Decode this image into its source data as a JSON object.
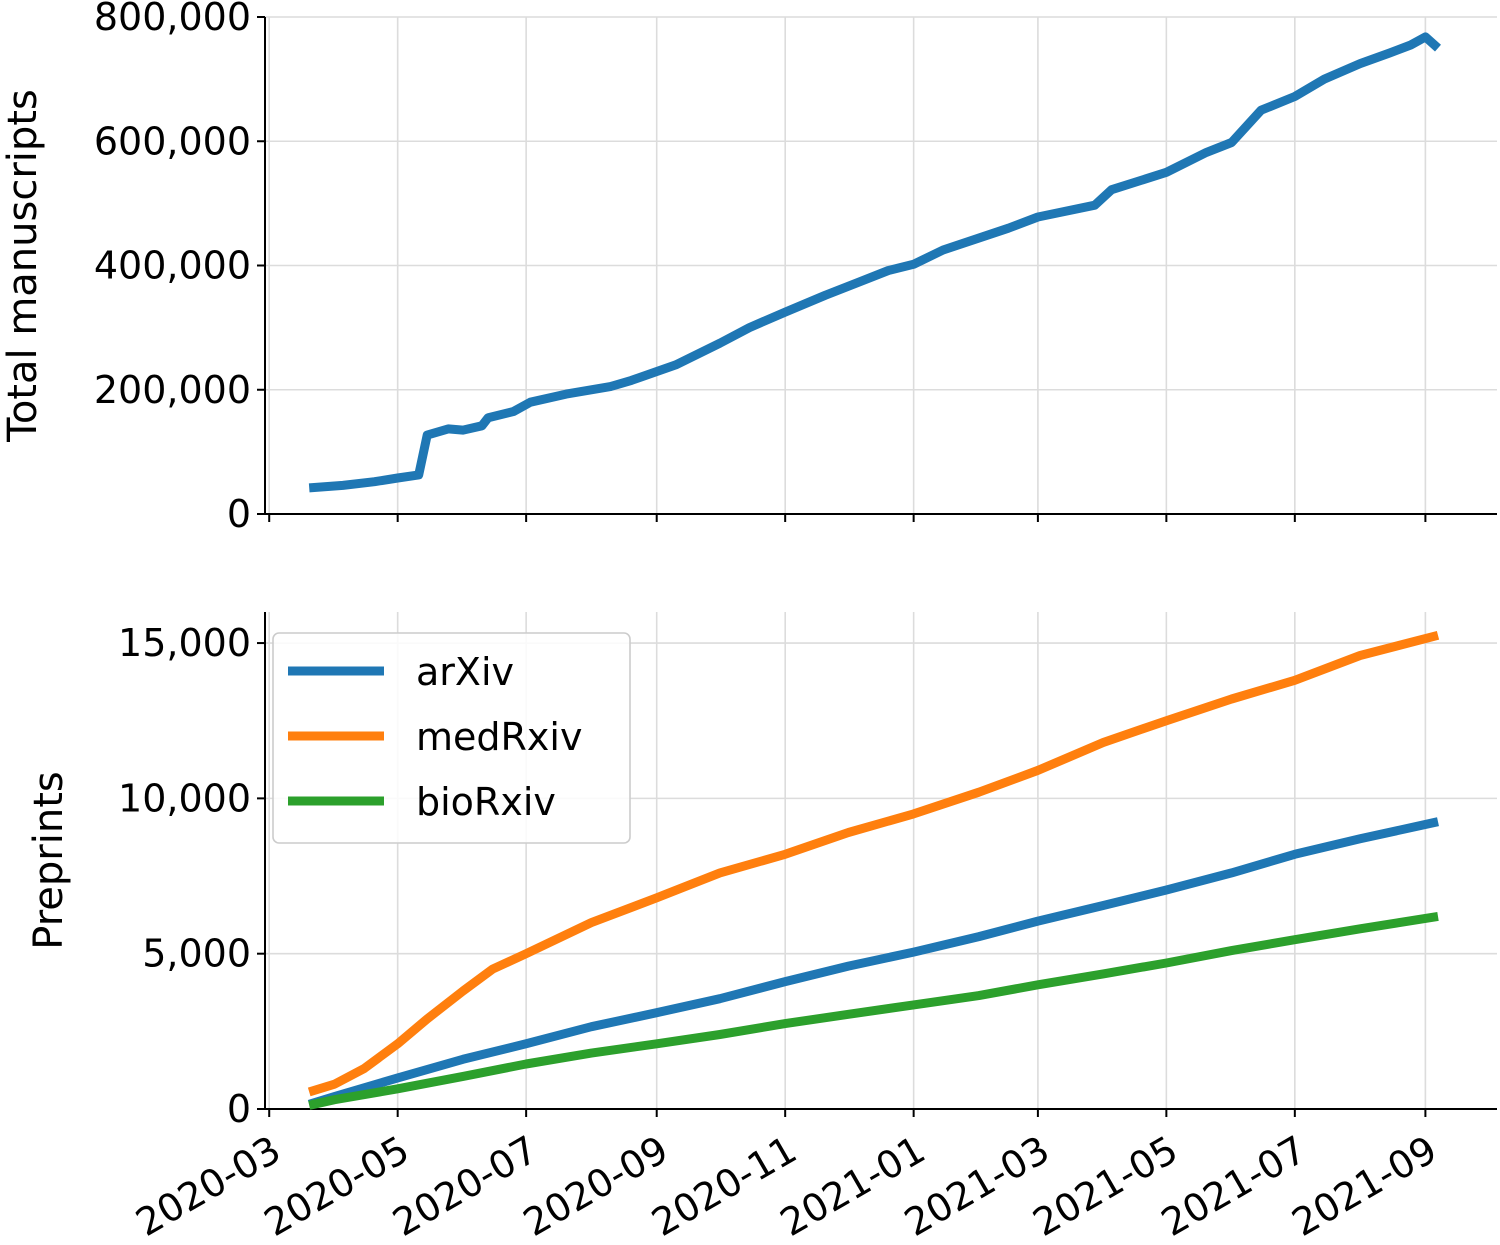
{
  "chart_data": [
    {
      "type": "line",
      "panel": "top",
      "ylabel": "Total manuscripts",
      "xlabel": "",
      "ylim": [
        0,
        800000
      ],
      "yticks": [
        0,
        200000,
        400000,
        600000,
        800000
      ],
      "ytick_labels": [
        "0",
        "200,000",
        "400,000",
        "600,000",
        "800,000"
      ],
      "xlim": [
        "2020-02-28",
        "2021-10-05"
      ],
      "xticks": [
        "2020-03-01",
        "2020-05-01",
        "2020-07-01",
        "2020-09-01",
        "2020-11-01",
        "2021-01-01",
        "2021-03-01",
        "2021-05-01",
        "2021-07-01",
        "2021-09-01"
      ],
      "grid": true,
      "series": [
        {
          "color": "#1f77b4",
          "points": [
            [
              "2020-03-20",
              42000
            ],
            [
              "2020-04-05",
              46000
            ],
            [
              "2020-04-20",
              52000
            ],
            [
              "2020-05-01",
              58000
            ],
            [
              "2020-05-11",
              63000
            ],
            [
              "2020-05-15",
              127000
            ],
            [
              "2020-05-25",
              137000
            ],
            [
              "2020-06-01",
              135000
            ],
            [
              "2020-06-10",
              142000
            ],
            [
              "2020-06-13",
              155000
            ],
            [
              "2020-06-25",
              165000
            ],
            [
              "2020-07-03",
              180000
            ],
            [
              "2020-07-20",
              193000
            ],
            [
              "2020-08-10",
              205000
            ],
            [
              "2020-08-20",
              215000
            ],
            [
              "2020-09-10",
              240000
            ],
            [
              "2020-10-01",
              275000
            ],
            [
              "2020-10-15",
              300000
            ],
            [
              "2020-11-01",
              325000
            ],
            [
              "2020-11-20",
              352000
            ],
            [
              "2020-12-05",
              372000
            ],
            [
              "2020-12-20",
              392000
            ],
            [
              "2021-01-01",
              402000
            ],
            [
              "2021-01-15",
              425000
            ],
            [
              "2021-02-15",
              460000
            ],
            [
              "2021-03-01",
              478000
            ],
            [
              "2021-03-28",
              497000
            ],
            [
              "2021-04-05",
              522000
            ],
            [
              "2021-05-01",
              550000
            ],
            [
              "2021-05-20",
              582000
            ],
            [
              "2021-06-01",
              598000
            ],
            [
              "2021-06-15",
              650000
            ],
            [
              "2021-07-01",
              672000
            ],
            [
              "2021-07-15",
              700000
            ],
            [
              "2021-08-01",
              725000
            ],
            [
              "2021-08-15",
              742000
            ],
            [
              "2021-08-25",
              755000
            ],
            [
              "2021-09-01",
              768000
            ],
            [
              "2021-09-07",
              750000
            ]
          ]
        }
      ]
    },
    {
      "type": "line",
      "panel": "bottom",
      "ylabel": "Preprints",
      "xlabel": "",
      "ylim": [
        0,
        16000
      ],
      "yticks": [
        0,
        5000,
        10000,
        15000
      ],
      "ytick_labels": [
        "0",
        "5,000",
        "10,000",
        "15,000"
      ],
      "xlim": [
        "2020-02-28",
        "2021-10-05"
      ],
      "xticks": [
        "2020-03-01",
        "2020-05-01",
        "2020-07-01",
        "2020-09-01",
        "2020-11-01",
        "2021-01-01",
        "2021-03-01",
        "2021-05-01",
        "2021-07-01",
        "2021-09-01"
      ],
      "xtick_labels": [
        "2020-03",
        "2020-05",
        "2020-07",
        "2020-09",
        "2020-11",
        "2021-01",
        "2021-03",
        "2021-05",
        "2021-07",
        "2021-09"
      ],
      "grid": true,
      "legend_position": "top-left",
      "series": [
        {
          "name": "arXiv",
          "color": "#1f77b4",
          "points": [
            [
              "2020-03-20",
              150
            ],
            [
              "2020-04-01",
              400
            ],
            [
              "2020-05-01",
              1000
            ],
            [
              "2020-06-01",
              1600
            ],
            [
              "2020-07-01",
              2100
            ],
            [
              "2020-08-01",
              2650
            ],
            [
              "2020-09-01",
              3100
            ],
            [
              "2020-10-01",
              3550
            ],
            [
              "2020-11-01",
              4100
            ],
            [
              "2020-12-01",
              4600
            ],
            [
              "2021-01-01",
              5050
            ],
            [
              "2021-02-01",
              5550
            ],
            [
              "2021-03-01",
              6050
            ],
            [
              "2021-04-01",
              6550
            ],
            [
              "2021-05-01",
              7050
            ],
            [
              "2021-06-01",
              7600
            ],
            [
              "2021-07-01",
              8200
            ],
            [
              "2021-08-01",
              8700
            ],
            [
              "2021-09-07",
              9250
            ]
          ]
        },
        {
          "name": "medRxiv",
          "color": "#ff7f0e",
          "points": [
            [
              "2020-03-20",
              550
            ],
            [
              "2020-04-01",
              800
            ],
            [
              "2020-04-15",
              1300
            ],
            [
              "2020-05-01",
              2100
            ],
            [
              "2020-05-15",
              2900
            ],
            [
              "2020-06-01",
              3800
            ],
            [
              "2020-06-15",
              4500
            ],
            [
              "2020-07-01",
              5000
            ],
            [
              "2020-08-01",
              6000
            ],
            [
              "2020-09-01",
              6800
            ],
            [
              "2020-10-01",
              7600
            ],
            [
              "2020-11-01",
              8200
            ],
            [
              "2020-12-01",
              8900
            ],
            [
              "2021-01-01",
              9500
            ],
            [
              "2021-02-01",
              10200
            ],
            [
              "2021-03-01",
              10900
            ],
            [
              "2021-04-01",
              11800
            ],
            [
              "2021-05-01",
              12500
            ],
            [
              "2021-06-01",
              13200
            ],
            [
              "2021-07-01",
              13800
            ],
            [
              "2021-08-01",
              14600
            ],
            [
              "2021-09-07",
              15250
            ]
          ]
        },
        {
          "name": "bioRxiv",
          "color": "#2ca02c",
          "points": [
            [
              "2020-03-20",
              120
            ],
            [
              "2020-04-01",
              300
            ],
            [
              "2020-05-01",
              650
            ],
            [
              "2020-06-01",
              1050
            ],
            [
              "2020-07-01",
              1450
            ],
            [
              "2020-08-01",
              1800
            ],
            [
              "2020-09-01",
              2100
            ],
            [
              "2020-10-01",
              2400
            ],
            [
              "2020-11-01",
              2750
            ],
            [
              "2020-12-01",
              3050
            ],
            [
              "2021-01-01",
              3350
            ],
            [
              "2021-02-01",
              3650
            ],
            [
              "2021-03-01",
              4000
            ],
            [
              "2021-04-01",
              4350
            ],
            [
              "2021-05-01",
              4700
            ],
            [
              "2021-06-01",
              5100
            ],
            [
              "2021-07-01",
              5450
            ],
            [
              "2021-08-01",
              5800
            ],
            [
              "2021-09-07",
              6200
            ]
          ]
        }
      ]
    }
  ]
}
